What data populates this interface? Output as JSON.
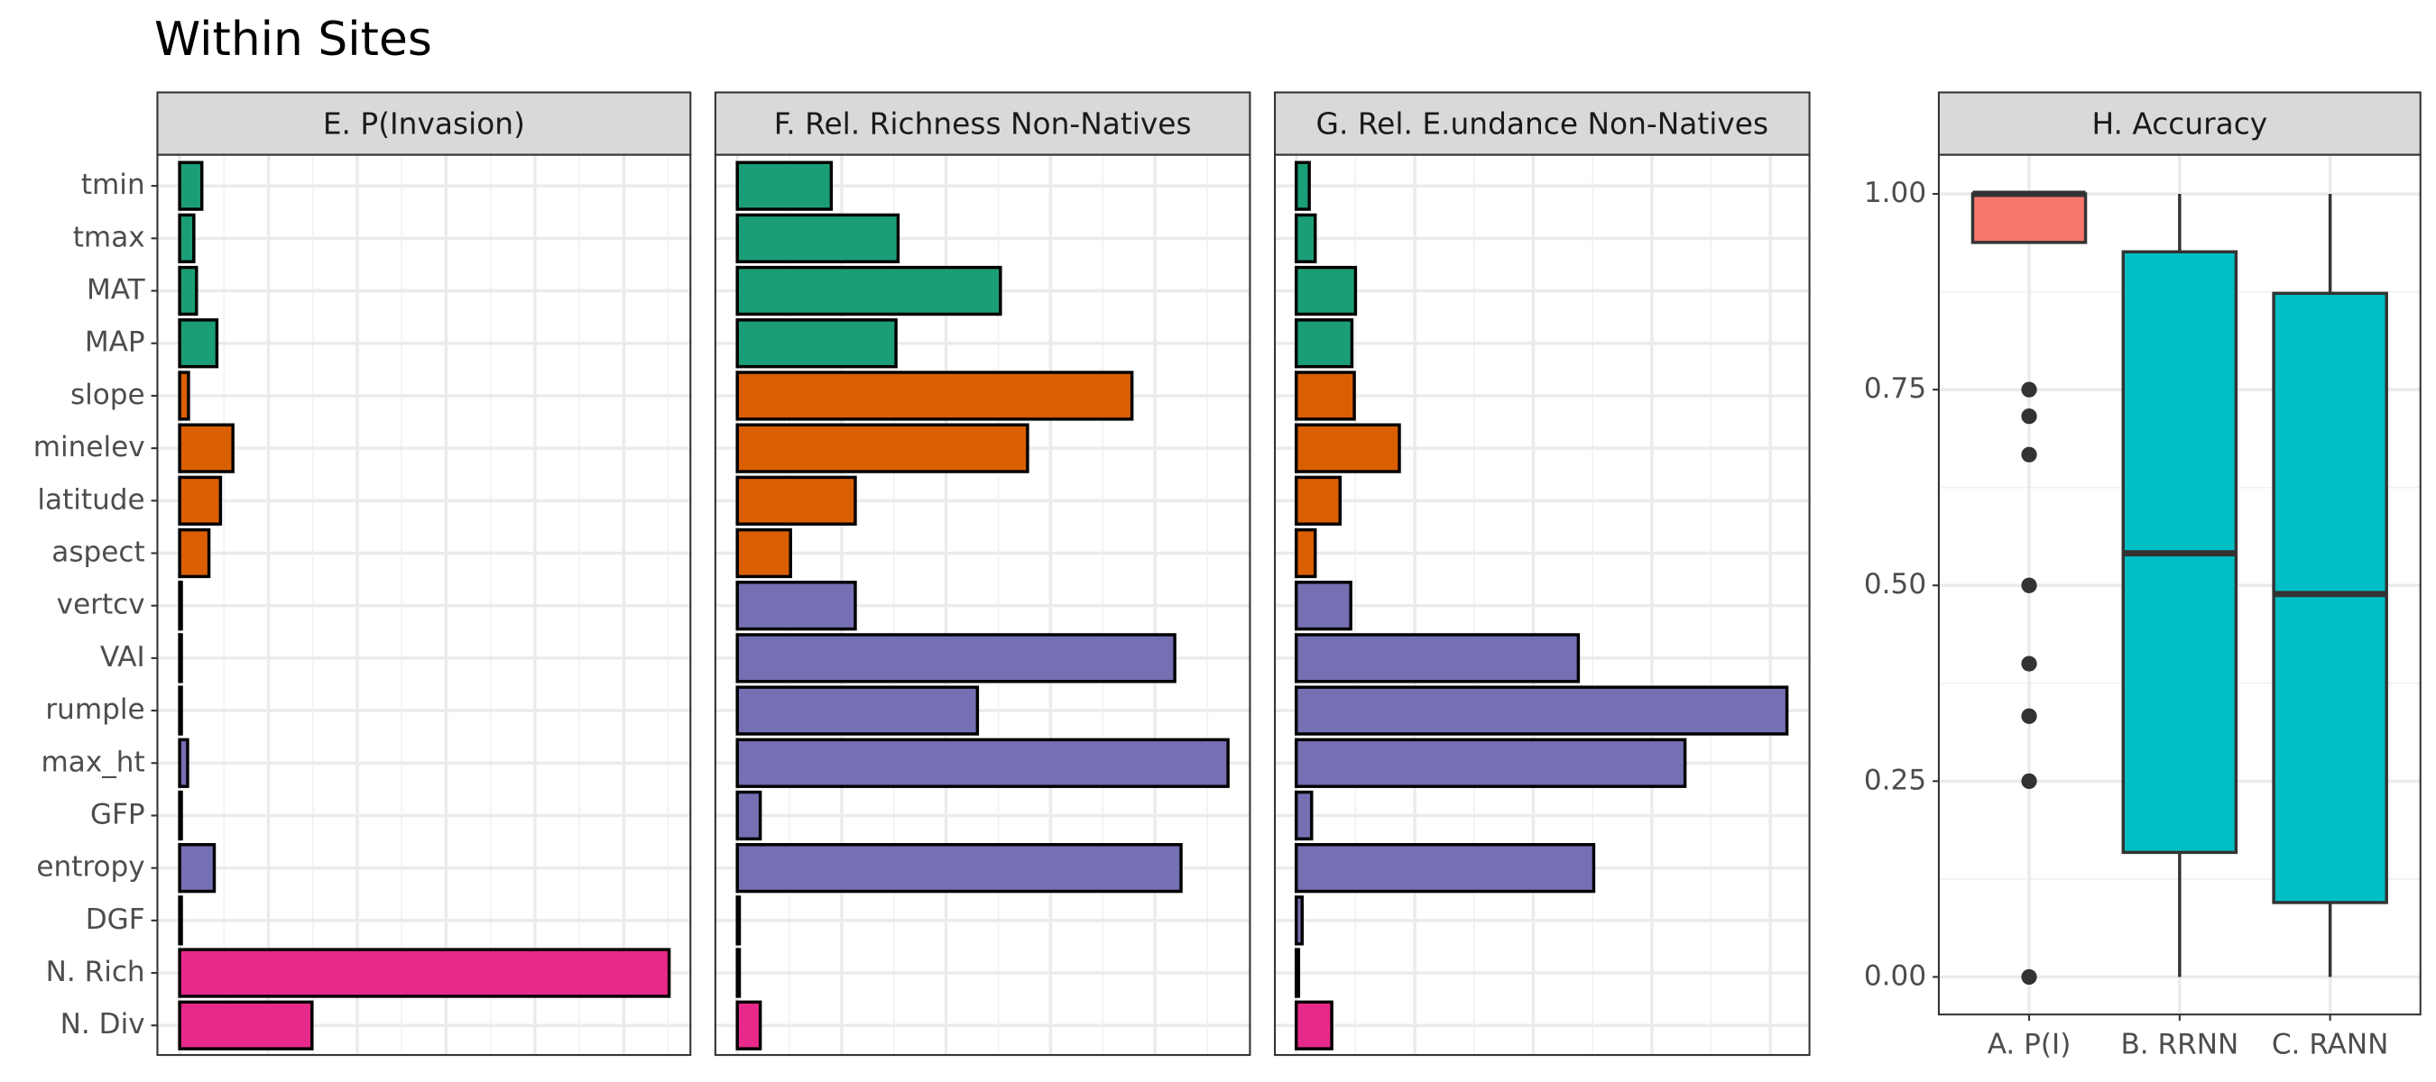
{
  "title": "Within Sites",
  "chart_data": [
    {
      "type": "barh",
      "strip": "E. P(Invasion)",
      "categories": [
        "tmin",
        "tmax",
        "MAT",
        "MAP",
        "slope",
        "minelev",
        "latitude",
        "aspect",
        "vertcv",
        "VAI",
        "rumple",
        "max_ht",
        "GFP",
        "entropy",
        "DGF",
        "N. Rich",
        "N. Div"
      ],
      "colors": [
        "#1b9e77",
        "#1b9e77",
        "#1b9e77",
        "#1b9e77",
        "#d95f02",
        "#d95f02",
        "#d95f02",
        "#d95f02",
        "#7570b3",
        "#7570b3",
        "#7570b3",
        "#7570b3",
        "#7570b3",
        "#7570b3",
        "#7570b3",
        "#e7298a",
        "#e7298a"
      ],
      "values": [
        0.25,
        0.16,
        0.19,
        0.42,
        0.1,
        0.6,
        0.46,
        0.33,
        0.02,
        0.02,
        0.02,
        0.09,
        0.02,
        0.39,
        0.02,
        5.51,
        1.49
      ],
      "xlim": [
        -0.25,
        5.75
      ],
      "xticks": [
        0,
        1,
        2,
        3,
        4,
        5
      ],
      "grid": true
    },
    {
      "type": "barh",
      "strip": "F. Rel. Richness Non-Natives",
      "values": [
        0.9,
        1.54,
        2.52,
        1.52,
        3.78,
        2.78,
        1.13,
        0.51,
        1.13,
        4.19,
        2.3,
        4.7,
        0.22,
        4.25,
        0.02,
        0.02,
        0.22
      ],
      "xlim": [
        -0.21,
        4.91
      ],
      "xticks": [
        0,
        1,
        2,
        3,
        4
      ],
      "grid": true
    },
    {
      "type": "barh",
      "strip": "G. Rel. E.undance Non-Natives",
      "values": [
        0.11,
        0.16,
        0.5,
        0.47,
        0.49,
        0.87,
        0.37,
        0.16,
        0.46,
        2.38,
        4.14,
        3.28,
        0.13,
        2.51,
        0.05,
        0.02,
        0.3
      ],
      "xlim": [
        -0.18,
        4.33
      ],
      "xticks": [
        0,
        1,
        2,
        3,
        4
      ],
      "grid": true
    },
    {
      "type": "box",
      "strip": "H. Accuracy",
      "categories": [
        "A. P(I)",
        "B. RRNN",
        "C. RANN"
      ],
      "colors": [
        "#f8766d",
        "#00bfc4",
        "#00bfc4"
      ],
      "boxes": [
        {
          "q1": 0.938,
          "median": 1.0,
          "q3": 1.0,
          "whislo": 0.938,
          "whishi": 1.0,
          "fliers": [
            0.75,
            0.716,
            0.667,
            0.5,
            0.4,
            0.333,
            0.25,
            0
          ]
        },
        {
          "q1": 0.159,
          "median": 0.541,
          "q3": 0.926,
          "whislo": 0,
          "whishi": 1.0,
          "fliers": []
        },
        {
          "q1": 0.095,
          "median": 0.489,
          "q3": 0.873,
          "whislo": 0,
          "whishi": 1.0,
          "fliers": []
        }
      ],
      "ylim": [
        -0.048,
        1.05
      ],
      "yticks": [
        {
          "value": 0,
          "label": "0.00"
        },
        {
          "value": 0.25,
          "label": "0.25"
        },
        {
          "value": 0.5,
          "label": "0.50"
        },
        {
          "value": 0.75,
          "label": "0.75"
        },
        {
          "value": 1,
          "label": "1.00"
        }
      ],
      "grid": true
    }
  ]
}
